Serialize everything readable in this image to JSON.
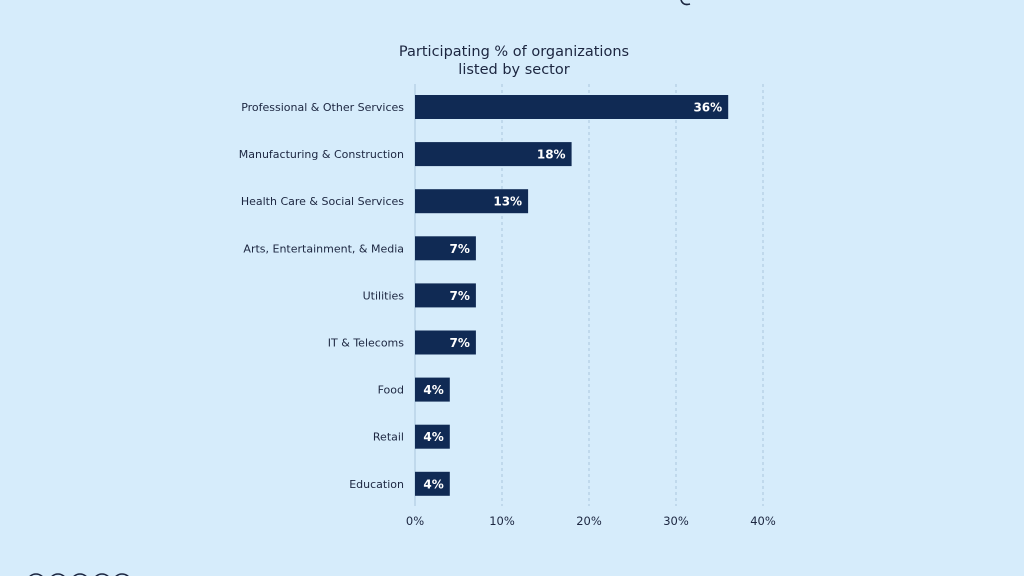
{
  "chart_data": {
    "type": "bar",
    "orientation": "horizontal",
    "title_lines": [
      "Participating % of organizations",
      "listed by sector"
    ],
    "categories": [
      "Professional & Other Services",
      "Manufacturing & Construction",
      "Health Care & Social Services",
      "Arts, Entertainment, & Media",
      "Utilities",
      "IT & Telecoms",
      "Food",
      "Retail",
      "Education"
    ],
    "values": [
      36,
      18,
      13,
      7,
      7,
      7,
      4,
      4,
      4
    ],
    "value_labels": [
      "36%",
      "18%",
      "13%",
      "7%",
      "7%",
      "7%",
      "4%",
      "4%",
      "4%"
    ],
    "xlim": [
      0,
      40
    ],
    "x_ticks": [
      0,
      10,
      20,
      30,
      40
    ],
    "x_tick_labels": [
      "0%",
      "10%",
      "20%",
      "30%",
      "40%"
    ],
    "grid": "vertical dashed",
    "colors": {
      "background": "#d6ecfb",
      "bar": "#102a54",
      "text": "#1c2640",
      "value_text": "#ffffff",
      "grid": "#a9c6dd"
    }
  }
}
